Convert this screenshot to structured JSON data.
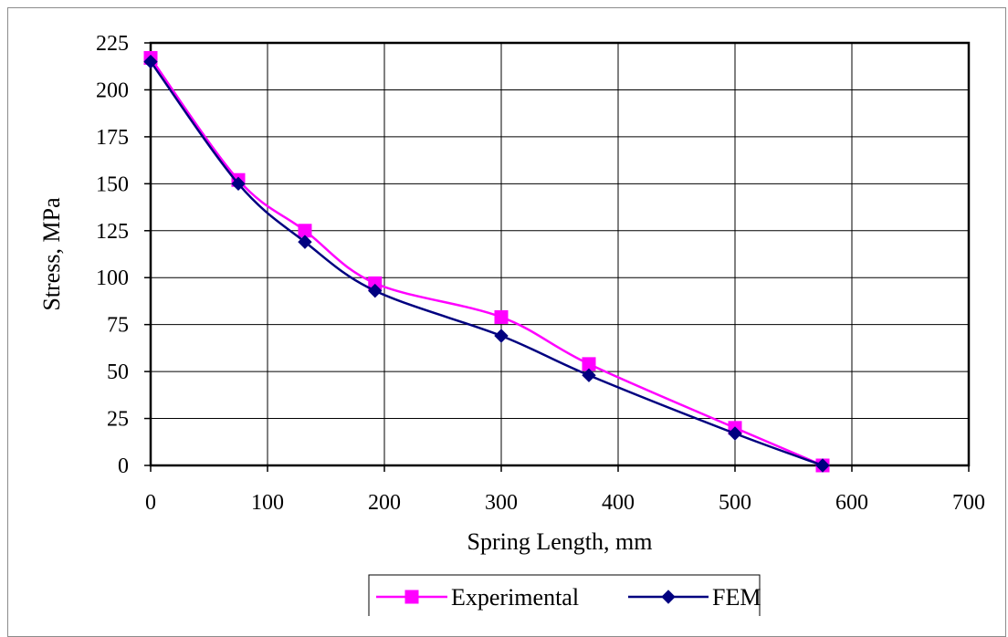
{
  "chart_data": {
    "type": "line",
    "xlabel": "Spring Length, mm",
    "ylabel": "Stress, MPa",
    "xlim": [
      0,
      700
    ],
    "ylim": [
      0,
      225
    ],
    "xticks": [
      0,
      100,
      200,
      300,
      400,
      500,
      600,
      700
    ],
    "yticks": [
      0,
      25,
      50,
      75,
      100,
      125,
      150,
      175,
      200,
      225
    ],
    "grid": true,
    "legend_position": "bottom",
    "series": [
      {
        "name": "Experimental",
        "color": "#ff00ff",
        "marker": "square",
        "x": [
          0,
          75,
          132,
          192,
          300,
          375,
          500,
          575
        ],
        "y": [
          217,
          152,
          125,
          97,
          79,
          54,
          20,
          0
        ]
      },
      {
        "name": "FEM",
        "color": "#000080",
        "marker": "diamond",
        "x": [
          0,
          75,
          132,
          192,
          300,
          375,
          500,
          575
        ],
        "y": [
          215,
          150,
          119,
          93,
          69,
          48,
          17,
          0
        ]
      }
    ]
  }
}
